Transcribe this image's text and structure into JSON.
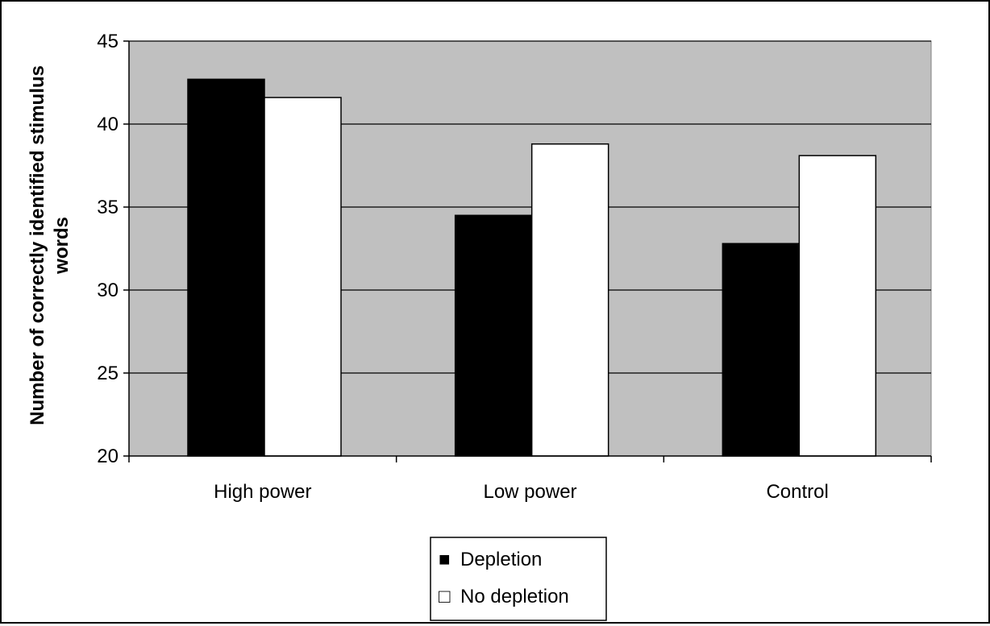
{
  "chart_data": {
    "type": "bar",
    "title": "",
    "xlabel": "",
    "ylabel_lines": [
      "Number of correctly identified stimulus",
      "words"
    ],
    "categories": [
      "High power",
      "Low power",
      "Control"
    ],
    "series": [
      {
        "name": "Depletion",
        "values": [
          42.7,
          34.5,
          32.8
        ],
        "color": "#000000"
      },
      {
        "name": "No depletion",
        "values": [
          41.6,
          38.8,
          38.1
        ],
        "color": "#ffffff"
      }
    ],
    "ylim": [
      20,
      45
    ],
    "yticks": [
      20,
      25,
      30,
      35,
      40,
      45
    ],
    "grid": true,
    "plot_background": "#c0c0c0",
    "legend_position": "bottom-center",
    "legend_markers": [
      "■",
      "□"
    ]
  }
}
